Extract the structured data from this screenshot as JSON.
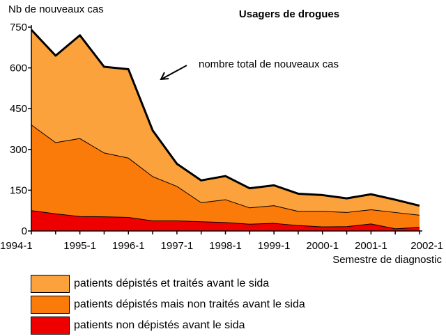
{
  "chart_data": {
    "type": "area",
    "title": "Usagers de drogues",
    "ylabel": "Nb de nouveaux cas",
    "xlabel": "Semestre de diagnostic",
    "ylim": [
      0,
      750
    ],
    "yticks": [
      0,
      150,
      300,
      450,
      600,
      750
    ],
    "x_tick_labels": [
      "1994-1",
      "1995-1",
      "1996-1",
      "1997-1",
      "1998-1",
      "1999-1",
      "2000-1",
      "2001-1",
      "2002-1"
    ],
    "x": [
      "1994-1",
      "1994-2",
      "1995-1",
      "1995-2",
      "1996-1",
      "1996-2",
      "1997-1",
      "1997-2",
      "1998-1",
      "1998-2",
      "1999-1",
      "1999-2",
      "2000-1",
      "2000-2",
      "2001-1",
      "2001-2",
      "2002-1"
    ],
    "stacked": true,
    "series": [
      {
        "name": "patients non dépistés avant le sida",
        "color": "#ee0000",
        "values": [
          75,
          63,
          53,
          52,
          50,
          37,
          37,
          34,
          31,
          25,
          28,
          20,
          15,
          16,
          26,
          8,
          13
        ]
      },
      {
        "name": "patients dépistés mais non traités avant le sida",
        "color": "#fa7a0a",
        "values": [
          315,
          262,
          287,
          235,
          218,
          163,
          127,
          70,
          84,
          60,
          65,
          52,
          57,
          52,
          52,
          60,
          45
        ]
      },
      {
        "name": "patients dépistés et traités avant le sida",
        "color": "#fba23c",
        "values": [
          350,
          320,
          380,
          317,
          327,
          170,
          83,
          82,
          87,
          72,
          75,
          65,
          60,
          52,
          57,
          47,
          35
        ]
      }
    ],
    "annotation": "nombre total de nouveaux  cas",
    "grid": false,
    "legend_position": "bottom-left"
  }
}
